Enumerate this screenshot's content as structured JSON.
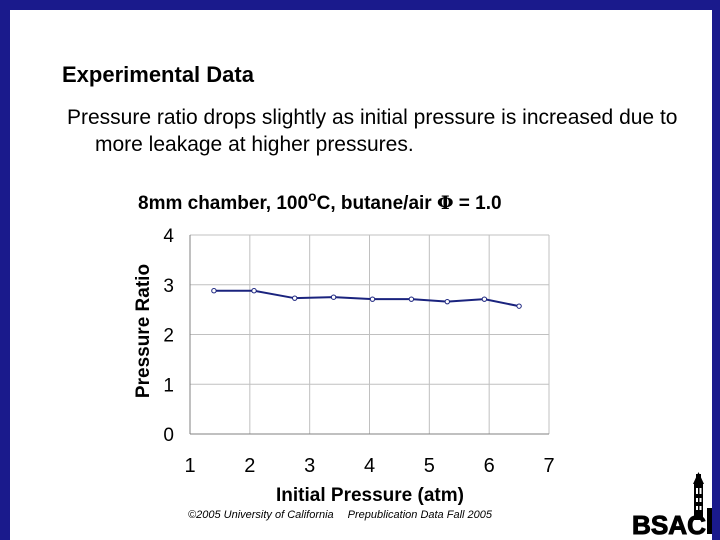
{
  "slide": {
    "heading": "Experimental Data",
    "bullet": "Pressure ratio drops slightly as initial pressure is increased due to more leakage at higher pressures.",
    "chart_title_prefix": "8mm chamber, 100",
    "chart_title_degree": "o",
    "chart_title_mid": "C, butane/air ",
    "chart_title_phi": "Φ",
    "chart_title_suffix": " = 1.0",
    "footer_left": "©2005 University of California",
    "footer_right": "Prepublication Data Fall 2005",
    "logo_text": "BSAC"
  },
  "colors": {
    "frame": "#1a1a8c",
    "line": "#1a237e",
    "grid": "#c0c0c0"
  },
  "chart_data": {
    "type": "line",
    "xlabel": "Initial Pressure (atm)",
    "ylabel": "Pressure Ratio",
    "xlim": [
      1,
      7
    ],
    "ylim": [
      0,
      4
    ],
    "xticks": [
      1,
      2,
      3,
      4,
      5,
      6,
      7
    ],
    "yticks": [
      0,
      1,
      2,
      3,
      4
    ],
    "grid": true,
    "series": [
      {
        "x": [
          1.4,
          2.07,
          2.75,
          3.4,
          4.05,
          4.7,
          5.3,
          5.92,
          6.5
        ],
        "y": [
          2.88,
          2.88,
          2.73,
          2.75,
          2.71,
          2.71,
          2.66,
          2.71,
          2.57
        ]
      }
    ]
  }
}
